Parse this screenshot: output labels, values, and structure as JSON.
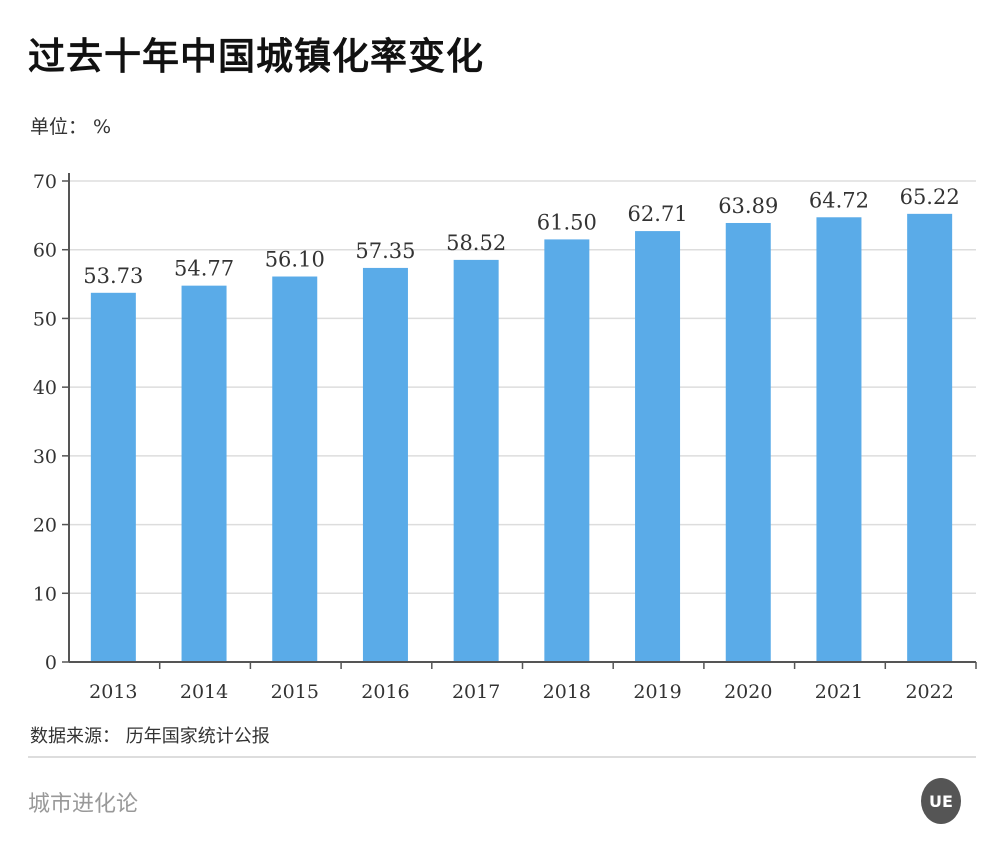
{
  "title": "过去十年中国城镇化率变化",
  "unit_label": "单位： %",
  "source": "数据来源： 历年国家统计公报",
  "brand": "城市进化论",
  "logo_text": "UE",
  "colors": {
    "bar": "#5aabe8",
    "grid": "#dddddd",
    "axis": "#555555"
  },
  "chart_data": {
    "type": "bar",
    "title": "过去十年中国城镇化率变化",
    "xlabel": "",
    "ylabel": "单位： %",
    "categories": [
      "2013",
      "2014",
      "2015",
      "2016",
      "2017",
      "2018",
      "2019",
      "2020",
      "2021",
      "2022"
    ],
    "values": [
      53.73,
      54.77,
      56.1,
      57.35,
      58.52,
      61.5,
      62.71,
      63.89,
      64.72,
      65.22
    ],
    "value_labels": [
      "53.73",
      "54.77",
      "56.10",
      "57.35",
      "58.52",
      "61.50",
      "62.71",
      "63.89",
      "64.72",
      "65.22"
    ],
    "ylim": [
      0,
      70
    ],
    "yticks": [
      0,
      10,
      20,
      30,
      40,
      50,
      60,
      70
    ],
    "grid": true,
    "legend": "none"
  }
}
